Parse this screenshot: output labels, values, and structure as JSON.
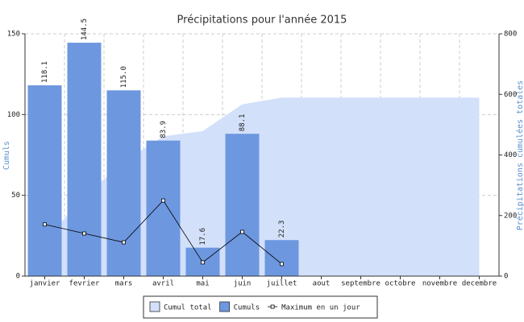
{
  "chart_data": {
    "type": "bar",
    "title": "Précipitations pour l'année 2015",
    "categories": [
      "janvier",
      "fevrier",
      "mars",
      "avril",
      "mai",
      "juin",
      "juillet",
      "aout",
      "septembre",
      "octobre",
      "novembre",
      "decembre"
    ],
    "ylabel": "Cumuls",
    "y2label": "Précipitations cumulées totales",
    "ylim": [
      0,
      150
    ],
    "yticks": [
      0,
      50,
      100,
      150
    ],
    "y2lim": [
      0,
      800
    ],
    "y2ticks": [
      0,
      200,
      400,
      600,
      800
    ],
    "grid": true,
    "series": [
      {
        "name": "Cumul total",
        "type": "area",
        "axis": "y2",
        "color": "#d3e0fa",
        "values": [
          118.1,
          262.6,
          377.6,
          461.5,
          479.1,
          567.2,
          589.5,
          589.5,
          589.5,
          589.5,
          589.5,
          589.5
        ]
      },
      {
        "name": "Cumuls",
        "type": "bar",
        "color": "#6d97df",
        "values": [
          118.1,
          144.5,
          115.0,
          83.9,
          17.6,
          88.1,
          22.3,
          null,
          null,
          null,
          null,
          null
        ],
        "value_labels": [
          "118.1",
          "144.5",
          "115.0",
          "83.9",
          "17.6",
          "88.1",
          "22.3",
          null,
          null,
          null,
          null,
          null
        ]
      },
      {
        "name": "Maximum en un jour",
        "type": "line",
        "color": "#000000",
        "values": [
          32,
          26.4,
          20.9,
          46.8,
          8.5,
          27.4,
          7.5,
          null,
          null,
          null,
          null,
          null
        ]
      }
    ]
  }
}
